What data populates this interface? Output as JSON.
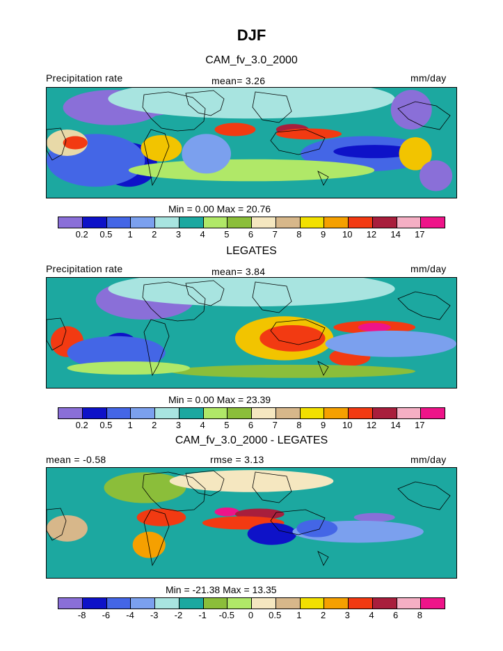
{
  "season": "DJF",
  "panels": [
    {
      "title": "CAM_fv_3.0_2000",
      "left_label": "Precipitation rate",
      "center_label": "mean=    3.26",
      "right_label": "mm/day",
      "minmax": "Min =     0.00  Max =   20.76",
      "base_fill": "#1CA8A0",
      "blobs": [
        [
          "#8A6FD8",
          0.16,
          0.18,
          0.12,
          0.16
        ],
        [
          "#8A6FD8",
          0.24,
          0.14,
          0.09,
          0.12
        ],
        [
          "#0E12C8",
          0.2,
          0.7,
          0.07,
          0.2
        ],
        [
          "#4466E6",
          0.12,
          0.66,
          0.12,
          0.24
        ],
        [
          "#A8E4E0",
          0.5,
          0.1,
          0.35,
          0.18
        ],
        [
          "#E8D9A8",
          0.05,
          0.5,
          0.05,
          0.12
        ],
        [
          "#F23A12",
          0.07,
          0.5,
          0.03,
          0.06
        ],
        [
          "#F23A12",
          0.28,
          0.5,
          0.04,
          0.06
        ],
        [
          "#F2C400",
          0.28,
          0.55,
          0.05,
          0.12
        ],
        [
          "#F23A12",
          0.46,
          0.38,
          0.05,
          0.06
        ],
        [
          "#A81E3C",
          0.6,
          0.38,
          0.04,
          0.05
        ],
        [
          "#F23A12",
          0.64,
          0.42,
          0.08,
          0.05
        ],
        [
          "#4466E6",
          0.78,
          0.6,
          0.16,
          0.16
        ],
        [
          "#0E12C8",
          0.8,
          0.58,
          0.1,
          0.06
        ],
        [
          "#8A6FD8",
          0.89,
          0.2,
          0.05,
          0.18
        ],
        [
          "#F2C400",
          0.9,
          0.6,
          0.04,
          0.15
        ],
        [
          "#B0E868",
          0.5,
          0.75,
          0.3,
          0.1
        ],
        [
          "#8A6FD8",
          0.95,
          0.8,
          0.04,
          0.14
        ],
        [
          "#7BA0EE",
          0.39,
          0.6,
          0.06,
          0.18
        ]
      ],
      "colorbar": {
        "colors": [
          "#8A6FD8",
          "#0E12C8",
          "#4466E6",
          "#7BA0EE",
          "#A8E4E0",
          "#1CA8A0",
          "#B0E868",
          "#8BBE3A",
          "#F5E7C0",
          "#D7B78A",
          "#F2E000",
          "#F5A000",
          "#F23A12",
          "#A81E3C",
          "#F5AFC4",
          "#EE1489"
        ],
        "ticks": [
          "0.2",
          "0.5",
          "1",
          "2",
          "3",
          "4",
          "5",
          "6",
          "7",
          "8",
          "9",
          "10",
          "12",
          "14",
          "17"
        ]
      }
    },
    {
      "title": "LEGATES",
      "left_label": "Precipitation rate",
      "center_label": "mean=    3.84",
      "right_label": "mm/day",
      "minmax": "Min =     0.00  Max =   23.39",
      "base_fill": "#1CA8A0",
      "blobs": [
        [
          "#8A6FD8",
          0.24,
          0.2,
          0.12,
          0.18
        ],
        [
          "#A8E4E0",
          0.5,
          0.1,
          0.35,
          0.16
        ],
        [
          "#0E12C8",
          0.18,
          0.6,
          0.04,
          0.1
        ],
        [
          "#F23A12",
          0.05,
          0.58,
          0.04,
          0.14
        ],
        [
          "#F2C400",
          0.58,
          0.55,
          0.12,
          0.2
        ],
        [
          "#F23A12",
          0.6,
          0.55,
          0.08,
          0.12
        ],
        [
          "#F23A12",
          0.8,
          0.45,
          0.1,
          0.06
        ],
        [
          "#EE1489",
          0.8,
          0.45,
          0.04,
          0.04
        ],
        [
          "#F23A12",
          0.74,
          0.72,
          0.05,
          0.08
        ],
        [
          "#7BA0EE",
          0.84,
          0.6,
          0.16,
          0.12
        ],
        [
          "#4466E6",
          0.17,
          0.68,
          0.12,
          0.15
        ],
        [
          "#8BBE3A",
          0.6,
          0.85,
          0.3,
          0.06
        ],
        [
          "#B0E868",
          0.2,
          0.82,
          0.15,
          0.06
        ]
      ],
      "colorbar": {
        "colors": [
          "#8A6FD8",
          "#0E12C8",
          "#4466E6",
          "#7BA0EE",
          "#A8E4E0",
          "#1CA8A0",
          "#B0E868",
          "#8BBE3A",
          "#F5E7C0",
          "#D7B78A",
          "#F2E000",
          "#F5A000",
          "#F23A12",
          "#A81E3C",
          "#F5AFC4",
          "#EE1489"
        ],
        "ticks": [
          "0.2",
          "0.5",
          "1",
          "2",
          "3",
          "4",
          "5",
          "6",
          "7",
          "8",
          "9",
          "10",
          "12",
          "14",
          "17"
        ]
      }
    },
    {
      "title": "CAM_fv_3.0_2000 - LEGATES",
      "left_label": "mean =   -0.58",
      "center_label": "rmse =     3.13",
      "right_label": "mm/day",
      "minmax": "Min = -21.38  Max =    13.35",
      "base_fill": "#1CA8A0",
      "blobs": [
        [
          "#8BBE3A",
          0.24,
          0.18,
          0.1,
          0.14
        ],
        [
          "#F5E7C0",
          0.5,
          0.12,
          0.2,
          0.1
        ],
        [
          "#F23A12",
          0.28,
          0.45,
          0.06,
          0.08
        ],
        [
          "#EE1489",
          0.44,
          0.4,
          0.03,
          0.04
        ],
        [
          "#A81E3C",
          0.52,
          0.42,
          0.06,
          0.05
        ],
        [
          "#F23A12",
          0.48,
          0.5,
          0.1,
          0.06
        ],
        [
          "#8A6FD8",
          0.8,
          0.45,
          0.05,
          0.04
        ],
        [
          "#0E12C8",
          0.55,
          0.6,
          0.06,
          0.1
        ],
        [
          "#7BA0EE",
          0.76,
          0.58,
          0.16,
          0.1
        ],
        [
          "#F5A000",
          0.25,
          0.7,
          0.04,
          0.12
        ],
        [
          "#D7B78A",
          0.05,
          0.55,
          0.05,
          0.12
        ],
        [
          "#4466E6",
          0.66,
          0.55,
          0.05,
          0.08
        ]
      ],
      "colorbar": {
        "colors": [
          "#8A6FD8",
          "#0E12C8",
          "#4466E6",
          "#7BA0EE",
          "#A8E4E0",
          "#1CA8A0",
          "#8BBE3A",
          "#B0E868",
          "#F5E7C0",
          "#D7B78A",
          "#F2E000",
          "#F5A000",
          "#F23A12",
          "#A81E3C",
          "#F5AFC4",
          "#EE1489"
        ],
        "ticks": [
          "-8",
          "-6",
          "-4",
          "-3",
          "-2",
          "-1",
          "-0.5",
          "0",
          "0.5",
          "1",
          "2",
          "3",
          "4",
          "6",
          "8"
        ]
      }
    }
  ]
}
